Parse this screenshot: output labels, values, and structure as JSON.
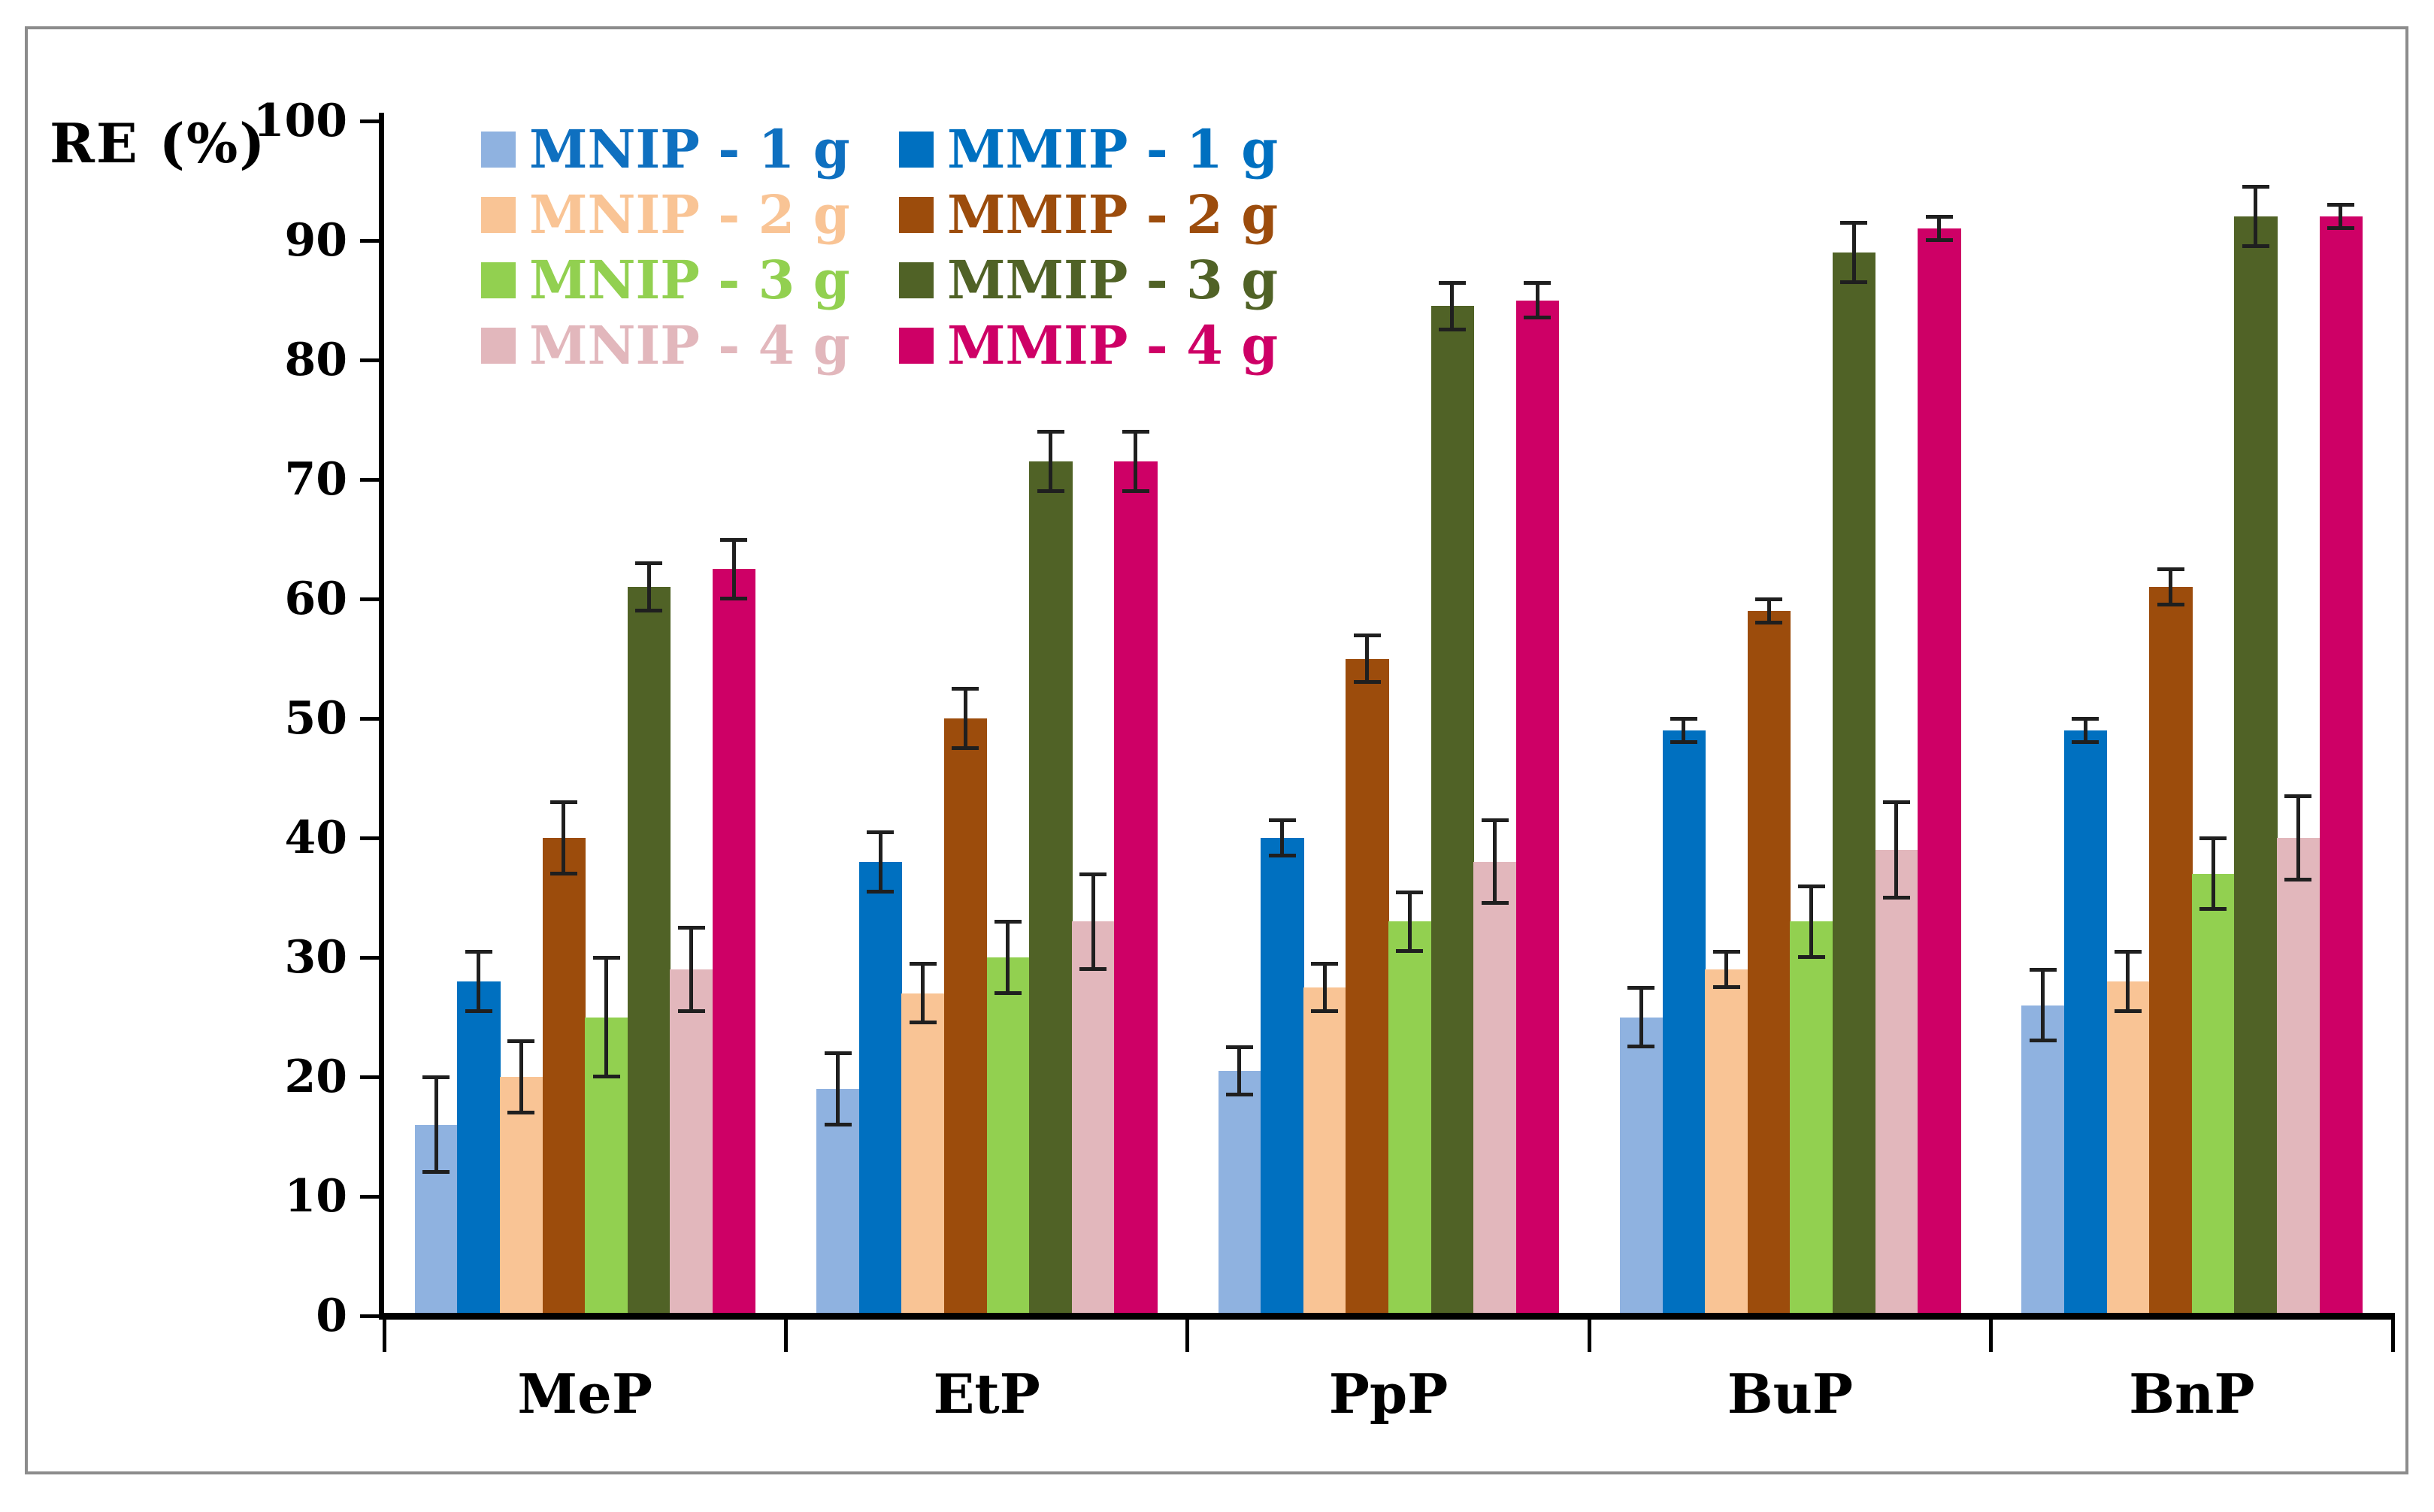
{
  "chart_data": {
    "type": "bar",
    "title": "RE (%)",
    "ylabel": "RE (%)",
    "xlabel": "",
    "categories": [
      "MeP",
      "EtP",
      "PpP",
      "BuP",
      "BnP"
    ],
    "series": [
      {
        "name": "MNIP - 1 g",
        "color": "#8FB2E0",
        "text_color": "#0F70C0",
        "values": [
          16,
          19,
          20.5,
          25,
          26
        ],
        "errors": [
          4,
          3,
          2,
          2.5,
          3
        ]
      },
      {
        "name": "MMIP - 1 g",
        "color": "#0070C0",
        "text_color": "#0070C0",
        "values": [
          28,
          38,
          40,
          49,
          49
        ],
        "errors": [
          2.5,
          2.5,
          1.5,
          1,
          1
        ]
      },
      {
        "name": "MNIP - 2 g",
        "color": "#F9C495",
        "text_color": "#F9C495",
        "values": [
          20,
          27,
          27.5,
          29,
          28
        ],
        "errors": [
          3,
          2.5,
          2,
          1.5,
          2.5
        ]
      },
      {
        "name": "MMIP - 2 g",
        "color": "#9C4C0C",
        "text_color": "#9C4C0C",
        "values": [
          40,
          50,
          55,
          59,
          61
        ],
        "errors": [
          3,
          2.5,
          2,
          1,
          1.5
        ]
      },
      {
        "name": "MNIP - 3 g",
        "color": "#92D050",
        "text_color": "#92D050",
        "values": [
          25,
          30,
          33,
          33,
          37
        ],
        "errors": [
          5,
          3,
          2.5,
          3,
          3
        ]
      },
      {
        "name": "MMIP - 3 g",
        "color": "#506226",
        "text_color": "#506226",
        "values": [
          61,
          71.5,
          84.5,
          89,
          92
        ],
        "errors": [
          2,
          2.5,
          2,
          2.5,
          2.5
        ]
      },
      {
        "name": "MNIP - 4 g",
        "color": "#E2B7BC",
        "text_color": "#E2B7BC",
        "values": [
          29,
          33,
          38,
          39,
          40
        ],
        "errors": [
          3.5,
          4,
          3.5,
          4,
          3.5
        ]
      },
      {
        "name": "MMIP - 4 g",
        "color": "#CE0066",
        "text_color": "#CE0066",
        "values": [
          62.5,
          71.5,
          85,
          91,
          92
        ],
        "errors": [
          2.5,
          2.5,
          1.5,
          1,
          1
        ]
      }
    ],
    "ylim": [
      0,
      100
    ],
    "ytick_step": 10,
    "yticks": [
      0,
      10,
      20,
      30,
      40,
      50,
      60,
      70,
      80,
      90,
      100
    ],
    "grid": false,
    "error_bars": true,
    "legend_position": "top-left, two columns (MNIP column | MMIP column)",
    "legend_rows": [
      [
        "MNIP - 1 g",
        "MMIP - 1 g"
      ],
      [
        "MNIP - 2 g",
        "MMIP - 2 g"
      ],
      [
        "MNIP - 3 g",
        "MMIP - 3 g"
      ],
      [
        "MNIP - 4 g",
        "MMIP - 4 g"
      ]
    ]
  },
  "frame": {
    "background": "#FFFFFF",
    "border_color": "#8C8C8C",
    "axis_color": "#000000",
    "error_bar_color": "#1F1F1F"
  }
}
